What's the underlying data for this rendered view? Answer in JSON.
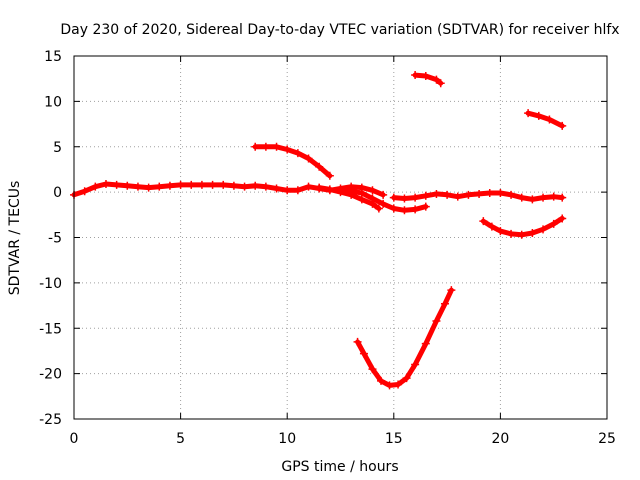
{
  "chart_data": {
    "type": "scatter",
    "title": "Day 230 of 2020, Sidereal Day-to-day VTEC variation (SDTVAR) for receiver hlfx",
    "xlabel": "GPS time / hours",
    "ylabel": "SDTVAR / TECUs",
    "xlim": [
      0,
      25
    ],
    "ylim": [
      -25,
      15
    ],
    "xticks": [
      0,
      5,
      10,
      15,
      20,
      25
    ],
    "yticks": [
      -25,
      -20,
      -15,
      -10,
      -5,
      0,
      5,
      10,
      15
    ],
    "grid": true,
    "legend": "none",
    "marker": "plus",
    "color": "#ff0000",
    "series": [
      {
        "name": "arc-main",
        "points": [
          [
            0.0,
            -0.3
          ],
          [
            0.5,
            0.1
          ],
          [
            1.0,
            0.6
          ],
          [
            1.5,
            0.9
          ],
          [
            2.0,
            0.8
          ],
          [
            2.5,
            0.7
          ],
          [
            3.0,
            0.6
          ],
          [
            3.5,
            0.5
          ],
          [
            4.0,
            0.6
          ],
          [
            4.5,
            0.7
          ],
          [
            5.0,
            0.8
          ],
          [
            5.5,
            0.8
          ],
          [
            6.0,
            0.8
          ],
          [
            6.5,
            0.8
          ],
          [
            7.0,
            0.8
          ],
          [
            7.5,
            0.7
          ],
          [
            8.0,
            0.6
          ],
          [
            8.5,
            0.7
          ],
          [
            9.0,
            0.6
          ],
          [
            9.5,
            0.4
          ],
          [
            10.0,
            0.2
          ],
          [
            10.5,
            0.2
          ],
          [
            11.0,
            0.6
          ],
          [
            11.5,
            0.4
          ],
          [
            12.0,
            0.2
          ],
          [
            12.5,
            0.4
          ],
          [
            13.0,
            0.6
          ],
          [
            13.5,
            0.5
          ],
          [
            14.0,
            0.2
          ],
          [
            14.5,
            -0.3
          ]
        ]
      },
      {
        "name": "arc-upper-1",
        "points": [
          [
            8.5,
            5.0
          ],
          [
            9.0,
            5.0
          ],
          [
            9.5,
            5.0
          ],
          [
            10.0,
            4.7
          ],
          [
            10.5,
            4.3
          ],
          [
            11.0,
            3.7
          ],
          [
            11.5,
            2.8
          ],
          [
            12.0,
            1.8
          ]
        ]
      },
      {
        "name": "arc-descending-1",
        "points": [
          [
            11.5,
            0.5
          ],
          [
            12.0,
            0.3
          ],
          [
            12.5,
            0.0
          ],
          [
            13.0,
            -0.3
          ],
          [
            13.5,
            -0.8
          ],
          [
            14.0,
            -1.3
          ],
          [
            14.3,
            -1.8
          ]
        ]
      },
      {
        "name": "arc-low-a",
        "points": [
          [
            12.8,
            0.2
          ],
          [
            13.5,
            -0.1
          ],
          [
            14.0,
            -0.7
          ],
          [
            14.5,
            -1.3
          ],
          [
            15.0,
            -1.8
          ],
          [
            15.5,
            -2.0
          ],
          [
            16.0,
            -1.9
          ],
          [
            16.5,
            -1.6
          ]
        ]
      },
      {
        "name": "arc-low-b",
        "points": [
          [
            15.0,
            -0.6
          ],
          [
            15.5,
            -0.7
          ],
          [
            16.0,
            -0.6
          ],
          [
            16.5,
            -0.4
          ],
          [
            17.0,
            -0.2
          ],
          [
            17.5,
            -0.3
          ],
          [
            18.0,
            -0.5
          ],
          [
            18.5,
            -0.3
          ],
          [
            19.0,
            -0.2
          ],
          [
            19.5,
            -0.1
          ],
          [
            20.0,
            -0.1
          ],
          [
            20.5,
            -0.3
          ],
          [
            21.0,
            -0.6
          ],
          [
            21.5,
            -0.8
          ],
          [
            22.0,
            -0.6
          ],
          [
            22.5,
            -0.5
          ],
          [
            22.9,
            -0.6
          ]
        ]
      },
      {
        "name": "arc-high",
        "points": [
          [
            16.0,
            12.9
          ],
          [
            16.5,
            12.8
          ],
          [
            17.0,
            12.4
          ],
          [
            17.2,
            12.0
          ]
        ]
      },
      {
        "name": "arc-upper-right",
        "points": [
          [
            21.3,
            8.7
          ],
          [
            21.8,
            8.4
          ],
          [
            22.3,
            8.0
          ],
          [
            22.9,
            7.3
          ]
        ]
      },
      {
        "name": "arc-dip-right",
        "points": [
          [
            19.2,
            -3.2
          ],
          [
            19.6,
            -3.8
          ],
          [
            20.0,
            -4.3
          ],
          [
            20.5,
            -4.6
          ],
          [
            21.0,
            -4.7
          ],
          [
            21.5,
            -4.5
          ],
          [
            22.0,
            -4.1
          ],
          [
            22.5,
            -3.5
          ],
          [
            22.9,
            -2.9
          ]
        ]
      },
      {
        "name": "arc-deep",
        "points": [
          [
            13.3,
            -16.5
          ],
          [
            13.6,
            -17.8
          ],
          [
            14.0,
            -19.5
          ],
          [
            14.4,
            -20.8
          ],
          [
            14.8,
            -21.3
          ],
          [
            15.2,
            -21.2
          ],
          [
            15.6,
            -20.5
          ],
          [
            16.0,
            -19.0
          ],
          [
            16.5,
            -16.7
          ],
          [
            17.0,
            -14.2
          ],
          [
            17.4,
            -12.3
          ],
          [
            17.7,
            -10.8
          ]
        ]
      }
    ]
  }
}
